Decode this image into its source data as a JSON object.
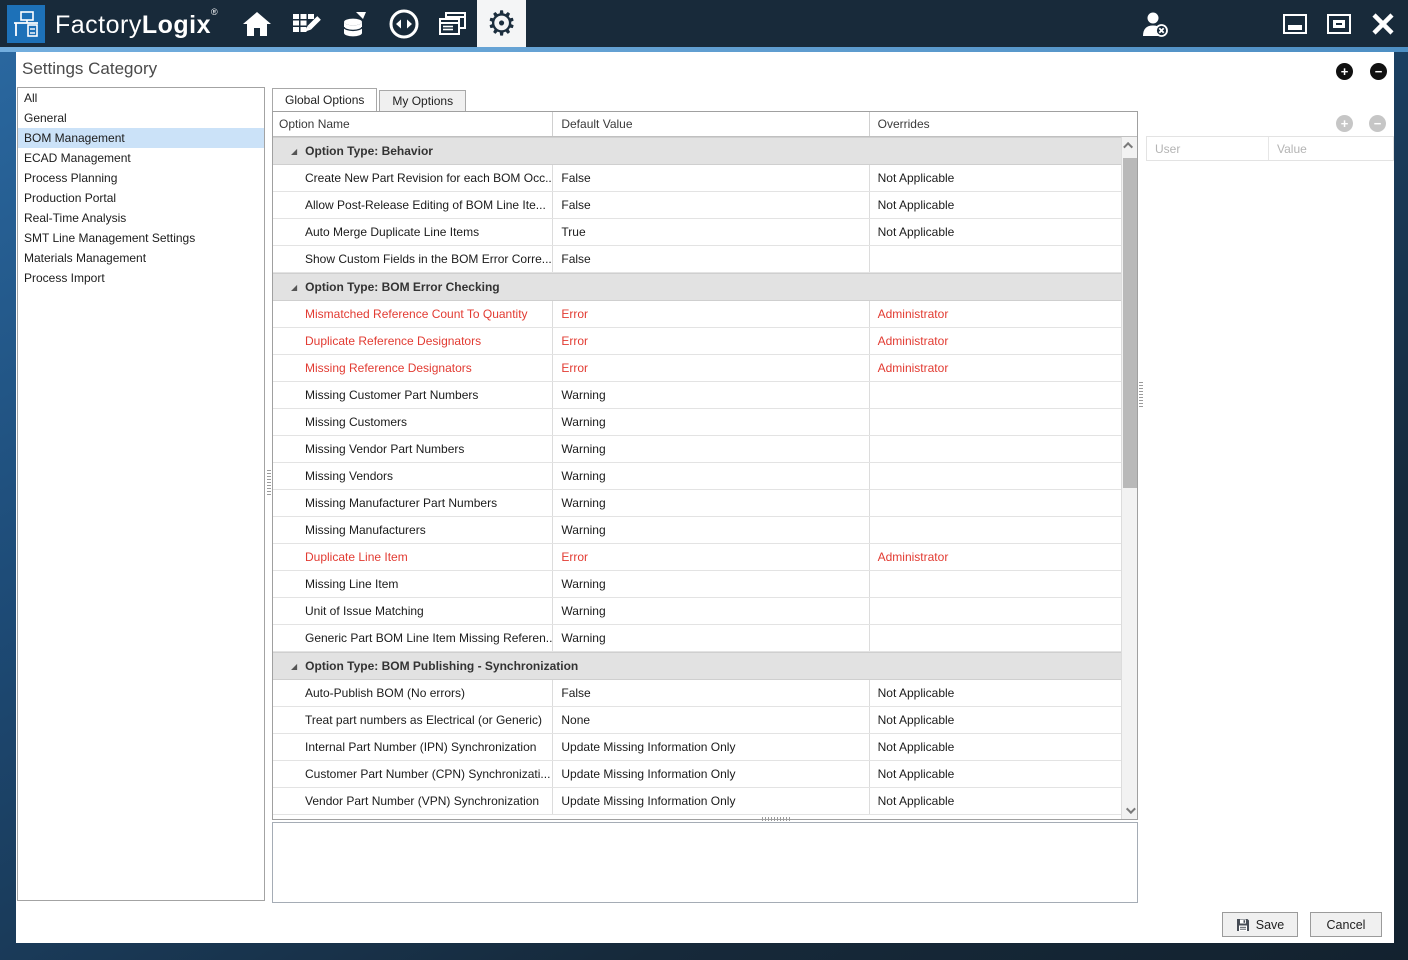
{
  "titlebar": {
    "brand_regular": "Factory",
    "brand_bold": "Logix",
    "registered": "®",
    "nav_icons": [
      "home-icon",
      "npi-grid-pencil-icon",
      "production-database-icon",
      "analytics-sync-icon",
      "logistics-windows-icon",
      "settings-gear-icon"
    ],
    "selected_nav": "settings-gear-icon",
    "window_controls": [
      "user-signout-icon",
      "minimize",
      "maximize",
      "close"
    ]
  },
  "sidebar": {
    "title": "Settings Category",
    "items": [
      {
        "label": "All",
        "selected": false
      },
      {
        "label": "General",
        "selected": false
      },
      {
        "label": "BOM Management",
        "selected": true
      },
      {
        "label": "ECAD Management",
        "selected": false
      },
      {
        "label": "Process Planning",
        "selected": false
      },
      {
        "label": "Production Portal",
        "selected": false
      },
      {
        "label": "Real-Time Analysis",
        "selected": false
      },
      {
        "label": "SMT Line Management Settings",
        "selected": false
      },
      {
        "label": "Materials Management",
        "selected": false
      },
      {
        "label": "Process Import",
        "selected": false
      }
    ]
  },
  "tabs": [
    {
      "label": "Global Options",
      "active": true
    },
    {
      "label": "My Options",
      "active": false
    }
  ],
  "grid": {
    "columns": [
      "Option Name",
      "Default Value",
      "Overrides"
    ],
    "rows": [
      {
        "type": "group",
        "label": "Option Type: Behavior"
      },
      {
        "type": "row",
        "name": "Create New Part Revision for each BOM Occ...",
        "value": "False",
        "override": "Not Applicable",
        "red": false
      },
      {
        "type": "row",
        "name": "Allow Post-Release Editing of BOM Line Ite...",
        "value": "False",
        "override": "Not Applicable",
        "red": false
      },
      {
        "type": "row",
        "name": "Auto Merge Duplicate Line Items",
        "value": "True",
        "override": "Not Applicable",
        "red": false
      },
      {
        "type": "row",
        "name": "Show Custom Fields in the BOM Error Corre...",
        "value": "False",
        "override": "",
        "red": false
      },
      {
        "type": "group",
        "label": "Option Type: BOM Error Checking"
      },
      {
        "type": "row",
        "name": "Mismatched Reference Count To Quantity",
        "value": "Error",
        "override": "Administrator",
        "red": true
      },
      {
        "type": "row",
        "name": "Duplicate Reference Designators",
        "value": "Error",
        "override": "Administrator",
        "red": true
      },
      {
        "type": "row",
        "name": "Missing Reference Designators",
        "value": "Error",
        "override": "Administrator",
        "red": true
      },
      {
        "type": "row",
        "name": "Missing Customer Part Numbers",
        "value": "Warning",
        "override": "",
        "red": false
      },
      {
        "type": "row",
        "name": "Missing Customers",
        "value": "Warning",
        "override": "",
        "red": false
      },
      {
        "type": "row",
        "name": "Missing Vendor Part Numbers",
        "value": "Warning",
        "override": "",
        "red": false
      },
      {
        "type": "row",
        "name": "Missing Vendors",
        "value": "Warning",
        "override": "",
        "red": false
      },
      {
        "type": "row",
        "name": "Missing Manufacturer Part Numbers",
        "value": "Warning",
        "override": "",
        "red": false
      },
      {
        "type": "row",
        "name": "Missing Manufacturers",
        "value": "Warning",
        "override": "",
        "red": false
      },
      {
        "type": "row",
        "name": "Duplicate Line Item",
        "value": "Error",
        "override": "Administrator",
        "red": true
      },
      {
        "type": "row",
        "name": "Missing Line Item",
        "value": "Warning",
        "override": "",
        "red": false
      },
      {
        "type": "row",
        "name": "Unit of Issue Matching",
        "value": "Warning",
        "override": "",
        "red": false
      },
      {
        "type": "row",
        "name": "Generic Part BOM Line Item Missing Referen...",
        "value": "Warning",
        "override": "",
        "red": false
      },
      {
        "type": "group",
        "label": "Option Type: BOM Publishing - Synchronization"
      },
      {
        "type": "row",
        "name": "Auto-Publish BOM (No errors)",
        "value": "False",
        "override": "Not Applicable",
        "red": false
      },
      {
        "type": "row",
        "name": "Treat part numbers as Electrical (or Generic)",
        "value": "None",
        "override": "Not Applicable",
        "red": false
      },
      {
        "type": "row",
        "name": "Internal Part Number (IPN) Synchronization",
        "value": "Update Missing Information Only",
        "override": "Not Applicable",
        "red": false
      },
      {
        "type": "row",
        "name": "Customer Part Number (CPN) Synchronizati...",
        "value": "Update Missing Information Only",
        "override": "Not Applicable",
        "red": false
      },
      {
        "type": "row",
        "name": "Vendor Part Number (VPN) Synchronization",
        "value": "Update Missing Information Only",
        "override": "Not Applicable",
        "red": false
      }
    ]
  },
  "right_panel": {
    "columns": [
      "User",
      "Value"
    ]
  },
  "footer": {
    "save_label": "Save",
    "cancel_label": "Cancel"
  },
  "colors": {
    "titlebar": "#182a3a",
    "accent_line": "#5f9ecf",
    "logo_blue": "#1d71b8",
    "selection_blue": "#cbe2f8",
    "error_red": "#e23b32",
    "group_row_grey": "#e2e2e2"
  }
}
